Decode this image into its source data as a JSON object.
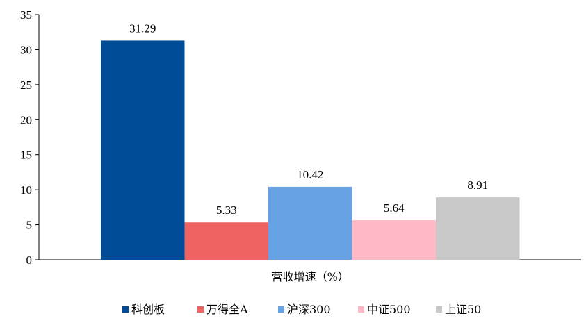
{
  "chart_data": {
    "type": "bar",
    "categories": [
      "营收增速（%）"
    ],
    "series": [
      {
        "name": "科创板",
        "values": [
          31.29
        ],
        "color": "#004C97",
        "label": "31.29"
      },
      {
        "name": "万得全A",
        "values": [
          5.33
        ],
        "color": "#EF6363",
        "label": "5.33"
      },
      {
        "name": "沪深300",
        "values": [
          10.42
        ],
        "color": "#67A3E4",
        "label": "10.42"
      },
      {
        "name": "中证500",
        "values": [
          5.64
        ],
        "color": "#FFB8C6",
        "label": "5.64"
      },
      {
        "name": "上证50",
        "values": [
          8.91
        ],
        "color": "#C8C8C8",
        "label": "8.91"
      }
    ],
    "ylim": [
      0,
      35
    ],
    "yticks": [
      "0",
      "5",
      "10",
      "15",
      "20",
      "25",
      "30",
      "35"
    ],
    "grid": false,
    "legend_position": "bottom"
  }
}
